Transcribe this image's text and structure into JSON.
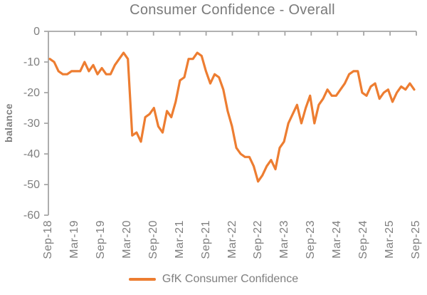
{
  "chart_title": "Consumer Confidence - Overall",
  "y_axis_title": "balance",
  "legend": {
    "label": "GfK Consumer Confidence"
  },
  "colors": {
    "line": "#ED7D31",
    "text": "#7F7F7F",
    "axis": "#A6A6A6",
    "background": "#FFFFFF"
  },
  "chart_data": {
    "type": "line",
    "title": "Consumer Confidence - Overall",
    "xlabel": "",
    "ylabel": "balance",
    "ylim": [
      -60,
      0
    ],
    "yticks": [
      0,
      -10,
      -20,
      -30,
      -40,
      -50,
      -60
    ],
    "xtick_labels": [
      "Sep-18",
      "Mar-19",
      "Sep-19",
      "Mar-20",
      "Sep-20",
      "Mar-21",
      "Sep-21",
      "Mar-22",
      "Sep-22",
      "Mar-23",
      "Sep-23",
      "Mar-24",
      "Sep-24",
      "Mar-25",
      "Sep-25"
    ],
    "grid": false,
    "legend_position": "bottom",
    "series": [
      {
        "name": "GfK Consumer Confidence",
        "color": "#ED7D31",
        "x": [
          "Sep-18",
          "Oct-18",
          "Nov-18",
          "Dec-18",
          "Jan-19",
          "Feb-19",
          "Mar-19",
          "Apr-19",
          "May-19",
          "Jun-19",
          "Jul-19",
          "Aug-19",
          "Sep-19",
          "Oct-19",
          "Nov-19",
          "Dec-19",
          "Jan-20",
          "Feb-20",
          "Mar-20",
          "Apr-20",
          "May-20",
          "Jun-20",
          "Jul-20",
          "Aug-20",
          "Sep-20",
          "Oct-20",
          "Nov-20",
          "Dec-20",
          "Jan-21",
          "Feb-21",
          "Mar-21",
          "Apr-21",
          "May-21",
          "Jun-21",
          "Jul-21",
          "Aug-21",
          "Sep-21",
          "Oct-21",
          "Nov-21",
          "Dec-21",
          "Jan-22",
          "Feb-22",
          "Mar-22",
          "Apr-22",
          "May-22",
          "Jun-22",
          "Jul-22",
          "Aug-22",
          "Sep-22",
          "Oct-22",
          "Nov-22",
          "Dec-22",
          "Jan-23",
          "Feb-23",
          "Mar-23",
          "Apr-23",
          "May-23",
          "Jun-23",
          "Jul-23",
          "Aug-23",
          "Sep-23",
          "Oct-23",
          "Nov-23",
          "Dec-23",
          "Jan-24",
          "Feb-24",
          "Mar-24",
          "Apr-24",
          "May-24",
          "Jun-24",
          "Jul-24",
          "Aug-24",
          "Sep-24",
          "Oct-24",
          "Nov-24",
          "Dec-24",
          "Jan-25",
          "Feb-25",
          "Mar-25",
          "Apr-25",
          "May-25",
          "Jun-25",
          "Jul-25",
          "Aug-25",
          "Sep-25"
        ],
        "values": [
          -9,
          -10,
          -13,
          -14,
          -14,
          -13,
          -13,
          -13,
          -10,
          -13,
          -11,
          -14,
          -12,
          -14,
          -14,
          -11,
          -9,
          -7,
          -9,
          -34,
          -33,
          -36,
          -28,
          -27,
          -25,
          -31,
          -33,
          -26,
          -28,
          -23,
          -16,
          -15,
          -9,
          -9,
          -7,
          -8,
          -13,
          -17,
          -14,
          -15,
          -19,
          -26,
          -31,
          -38,
          -40,
          -41,
          -41,
          -44,
          -49,
          -47,
          -44,
          -42,
          -45,
          -38,
          -36,
          -30,
          -27,
          -24,
          -30,
          -25,
          -21,
          -30,
          -24,
          -22,
          -19,
          -21,
          -21,
          -19,
          -17,
          -14,
          -13,
          -13,
          -20,
          -21,
          -18,
          -17,
          -22,
          -20,
          -19,
          -23,
          -20,
          -18,
          -19,
          -17,
          -19
        ]
      }
    ]
  }
}
